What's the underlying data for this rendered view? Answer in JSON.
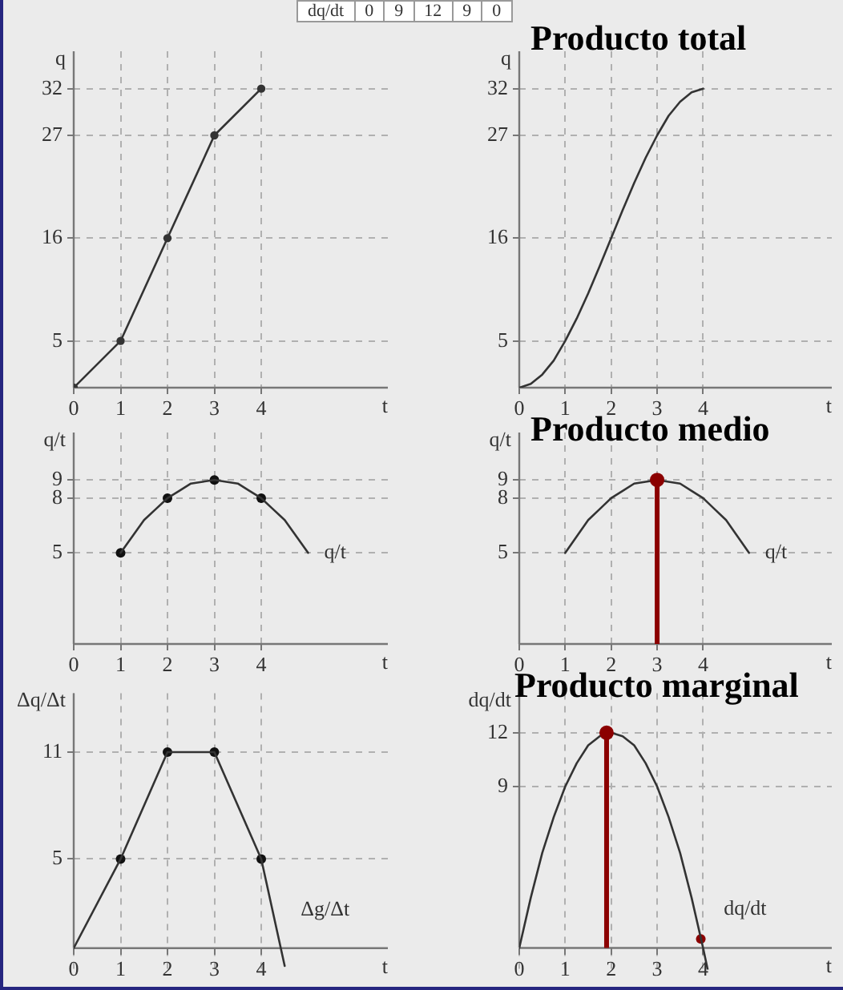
{
  "chart_data": [
    {
      "type": "line",
      "xlabel": "t",
      "ylabel": "q",
      "annotations": [
        "dq/dt 0 9 12 9 0"
      ],
      "x": [
        0,
        1,
        2,
        3,
        4
      ],
      "marker": "circle",
      "grid": true,
      "xlim": [
        0,
        6.7
      ],
      "ylim": [
        0,
        36
      ],
      "xticks": [
        0,
        1,
        2,
        3,
        4
      ],
      "yticks": [
        5,
        16,
        27,
        32
      ],
      "series": [
        {
          "color": "#333333",
          "values": [
            0,
            5,
            16,
            27,
            32
          ]
        }
      ]
    },
    {
      "type": "line",
      "title": "Producto total",
      "xlabel": "t",
      "ylabel": "q",
      "marker": "none",
      "grid": true,
      "xlim": [
        0,
        6.8
      ],
      "ylim": [
        0,
        36
      ],
      "xticks": [
        0,
        1,
        2,
        3,
        4
      ],
      "yticks": [
        5,
        16,
        27,
        32
      ],
      "x": [
        0,
        0.25,
        0.5,
        0.75,
        1,
        1.25,
        1.5,
        1.75,
        2,
        2.25,
        2.5,
        2.75,
        3,
        3.25,
        3.5,
        3.75,
        4
      ],
      "series": [
        {
          "color": "#333333",
          "values": [
            0,
            0.4,
            1.4,
            2.9,
            5,
            7.4,
            10.1,
            13,
            16,
            19,
            21.9,
            24.6,
            27,
            29.1,
            30.6,
            31.6,
            32
          ]
        }
      ]
    },
    {
      "type": "line",
      "xlabel": "t",
      "ylabel": "q/t",
      "marker": "none",
      "grid": true,
      "xlim": [
        0,
        6.7
      ],
      "ylim": [
        0,
        11.6
      ],
      "xticks": [
        0,
        1,
        2,
        3,
        4
      ],
      "yticks": [
        5,
        8,
        9
      ],
      "series": [
        {
          "name": "q/t",
          "color": "#333333",
          "x": [
            1,
            1.25,
            1.5,
            1.75,
            2,
            2.25,
            2.5,
            2.75,
            3,
            3.25,
            3.5,
            3.75,
            4,
            4.25,
            4.5,
            4.75,
            5
          ],
          "values": [
            5,
            5.9,
            6.8,
            7.4,
            8,
            8.4,
            8.8,
            8.9,
            9,
            8.9,
            8.8,
            8.4,
            8,
            7.4,
            6.8,
            5.9,
            5
          ]
        },
        {
          "type": "scatter",
          "marker": "circle",
          "color": "#111111",
          "x": [
            1,
            2,
            3,
            4
          ],
          "values": [
            5,
            8,
            9,
            8
          ]
        }
      ]
    },
    {
      "type": "line",
      "title": "Producto medio",
      "xlabel": "t",
      "ylabel": "q/t",
      "grid": true,
      "xlim": [
        0,
        6.8
      ],
      "ylim": [
        0,
        11.6
      ],
      "xticks": [
        0,
        1,
        2,
        3,
        4
      ],
      "yticks": [
        5,
        8,
        9
      ],
      "series": [
        {
          "name": "q/t",
          "color": "#333333",
          "marker": "none",
          "x": [
            1,
            1.25,
            1.5,
            1.75,
            2,
            2.25,
            2.5,
            2.75,
            3,
            3.25,
            3.5,
            3.75,
            4,
            4.25,
            4.5,
            4.75,
            5
          ],
          "values": [
            5,
            5.9,
            6.8,
            7.4,
            8,
            8.4,
            8.8,
            8.9,
            9,
            8.9,
            8.8,
            8.4,
            8,
            7.4,
            6.8,
            5.9,
            5
          ]
        },
        {
          "type": "lollipop",
          "color": "#8b0000",
          "x": [
            3
          ],
          "values": [
            9
          ]
        }
      ]
    },
    {
      "type": "line",
      "xlabel": "t",
      "ylabel": "Δq/Δt",
      "marker": "none",
      "grid": true,
      "xlim": [
        0,
        6.7
      ],
      "ylim": [
        -1.2,
        14.3
      ],
      "xticks": [
        0,
        1,
        2,
        3,
        4
      ],
      "yticks": [
        5,
        11
      ],
      "series": [
        {
          "name": "Δg/Δt",
          "color": "#333333",
          "x": [
            0,
            1,
            2,
            3,
            4,
            4.5
          ],
          "values": [
            0,
            5,
            11,
            11,
            5,
            -1
          ]
        },
        {
          "type": "scatter",
          "marker": "circle",
          "color": "#111111",
          "x": [
            1,
            2,
            3,
            4
          ],
          "values": [
            5,
            11,
            11,
            5
          ]
        }
      ]
    },
    {
      "type": "line",
      "title": "Producto marginal",
      "xlabel": "t",
      "ylabel": "dq/dt",
      "grid": true,
      "xlim": [
        0,
        6.8
      ],
      "ylim": [
        -1.2,
        14.2
      ],
      "xticks": [
        0,
        1,
        2,
        3,
        4
      ],
      "yticks": [
        9,
        12
      ],
      "series": [
        {
          "name": "dq/dt",
          "color": "#333333",
          "marker": "none",
          "x": [
            0,
            0.25,
            0.5,
            0.75,
            1,
            1.25,
            1.5,
            1.75,
            2,
            2.25,
            2.5,
            2.75,
            3,
            3.25,
            3.5,
            3.75,
            4,
            4.1
          ],
          "values": [
            0,
            2.8,
            5.3,
            7.3,
            9,
            10.3,
            11.3,
            11.8,
            12,
            11.8,
            11.3,
            10.3,
            9,
            7.3,
            5.3,
            2.8,
            0,
            -1.2
          ]
        },
        {
          "type": "lollipop",
          "color": "#8b0000",
          "x": [
            1.9
          ],
          "values": [
            12
          ]
        },
        {
          "type": "scatter",
          "marker": "circle",
          "color": "#8b0000",
          "x": [
            3.95
          ],
          "values": [
            0.5
          ]
        }
      ]
    }
  ]
}
